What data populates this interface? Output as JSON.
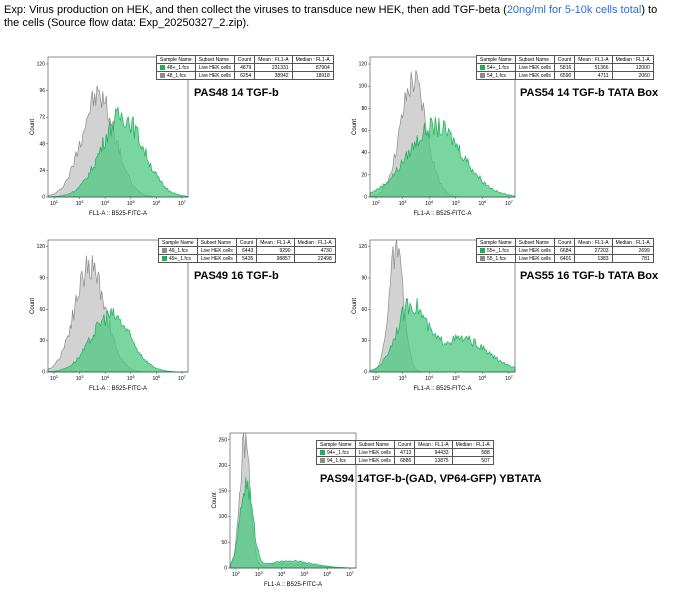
{
  "header": {
    "text_before": "Exp: Virus production on HEK, and then collect the viruses to transduce new HEK, then add TGF-beta (",
    "link_text": "20ng/ml for 5-10k cells total",
    "text_after": ") to the cells (Source flow data: Exp_20250327_2.zip)."
  },
  "colors": {
    "green": "#1fae5b",
    "green_fill": "#4cc882",
    "gray": "#8c8c8c",
    "gray_fill": "#cdcdcd"
  },
  "legend_headers": [
    "Sample Name",
    "Subset Name",
    "Count",
    "Mean : FL1-A",
    "Median : FL1-A"
  ],
  "axis": {
    "x_label": "FL1-A :: B525-FITC-A",
    "y_label": "Count",
    "x_ticks": [
      "10",
      "10",
      "10",
      "10",
      "10",
      "10"
    ],
    "x_exps": [
      "2",
      "3",
      "4",
      "5",
      "6",
      "7"
    ]
  },
  "panels": [
    {
      "title": "PAS48 14 TGF-b",
      "y_ticks": [
        "0",
        "24",
        "48",
        "72",
        "96",
        "120"
      ],
      "rows": [
        {
          "color": "green",
          "sample": "48+_1.fcs",
          "subset": "Live HEK cells",
          "count": "4879",
          "mean": "231331",
          "median": "87904"
        },
        {
          "color": "gray",
          "sample": "48_1.fcs",
          "subset": "Live HEK cells",
          "count": "6254",
          "mean": "38942",
          "median": "18918"
        }
      ]
    },
    {
      "title": "PAS54 14 TGF-b TATA Box",
      "y_ticks": [
        "0",
        "20",
        "40",
        "60",
        "80",
        "100",
        "120"
      ],
      "rows": [
        {
          "color": "green",
          "sample": "54+_1.fcs",
          "subset": "Live HEK cells",
          "count": "5816",
          "mean": "51366",
          "median": "12000"
        },
        {
          "color": "gray",
          "sample": "54_1.fcs",
          "subset": "Live HEK cells",
          "count": "6590",
          "mean": "4711",
          "median": "2060"
        }
      ]
    },
    {
      "title": "PAS49 16 TGF-b",
      "y_ticks": [
        "0",
        "30",
        "60",
        "90",
        "120"
      ],
      "rows": [
        {
          "color": "gray",
          "sample": "49_1.fcs",
          "subset": "Live HEK cells",
          "count": "6443",
          "mean": "9290",
          "median": "4730"
        },
        {
          "color": "green",
          "sample": "49+_1.fcs",
          "subset": "Live HEK cells",
          "count": "5435",
          "mean": "98857",
          "median": "22498"
        }
      ]
    },
    {
      "title": "PAS55 16 TGF-b TATA Box",
      "y_ticks": [
        "0",
        "30",
        "60",
        "90",
        "120"
      ],
      "rows": [
        {
          "color": "green",
          "sample": "55+_1.fcs",
          "subset": "Live HEK cells",
          "count": "6684",
          "mean": "27203",
          "median": "2699"
        },
        {
          "color": "gray",
          "sample": "55_1.fcs",
          "subset": "Live HEK cells",
          "count": "6401",
          "mean": "1383",
          "median": "781"
        }
      ]
    },
    {
      "title": "PAS94 14TGF-b-(GAD, VP64-GFP) YBTATA",
      "y_ticks": [
        "0",
        "50",
        "100",
        "150",
        "200",
        "250"
      ],
      "rows": [
        {
          "color": "green",
          "sample": "94+_1.fcs",
          "subset": "Live HEK cells",
          "count": "4713",
          "mean": "94433",
          "median": "588"
        },
        {
          "color": "gray",
          "sample": "94_1.fcs",
          "subset": "Live HEK cells",
          "count": "6886",
          "mean": "13875",
          "median": "507"
        }
      ]
    }
  ]
}
